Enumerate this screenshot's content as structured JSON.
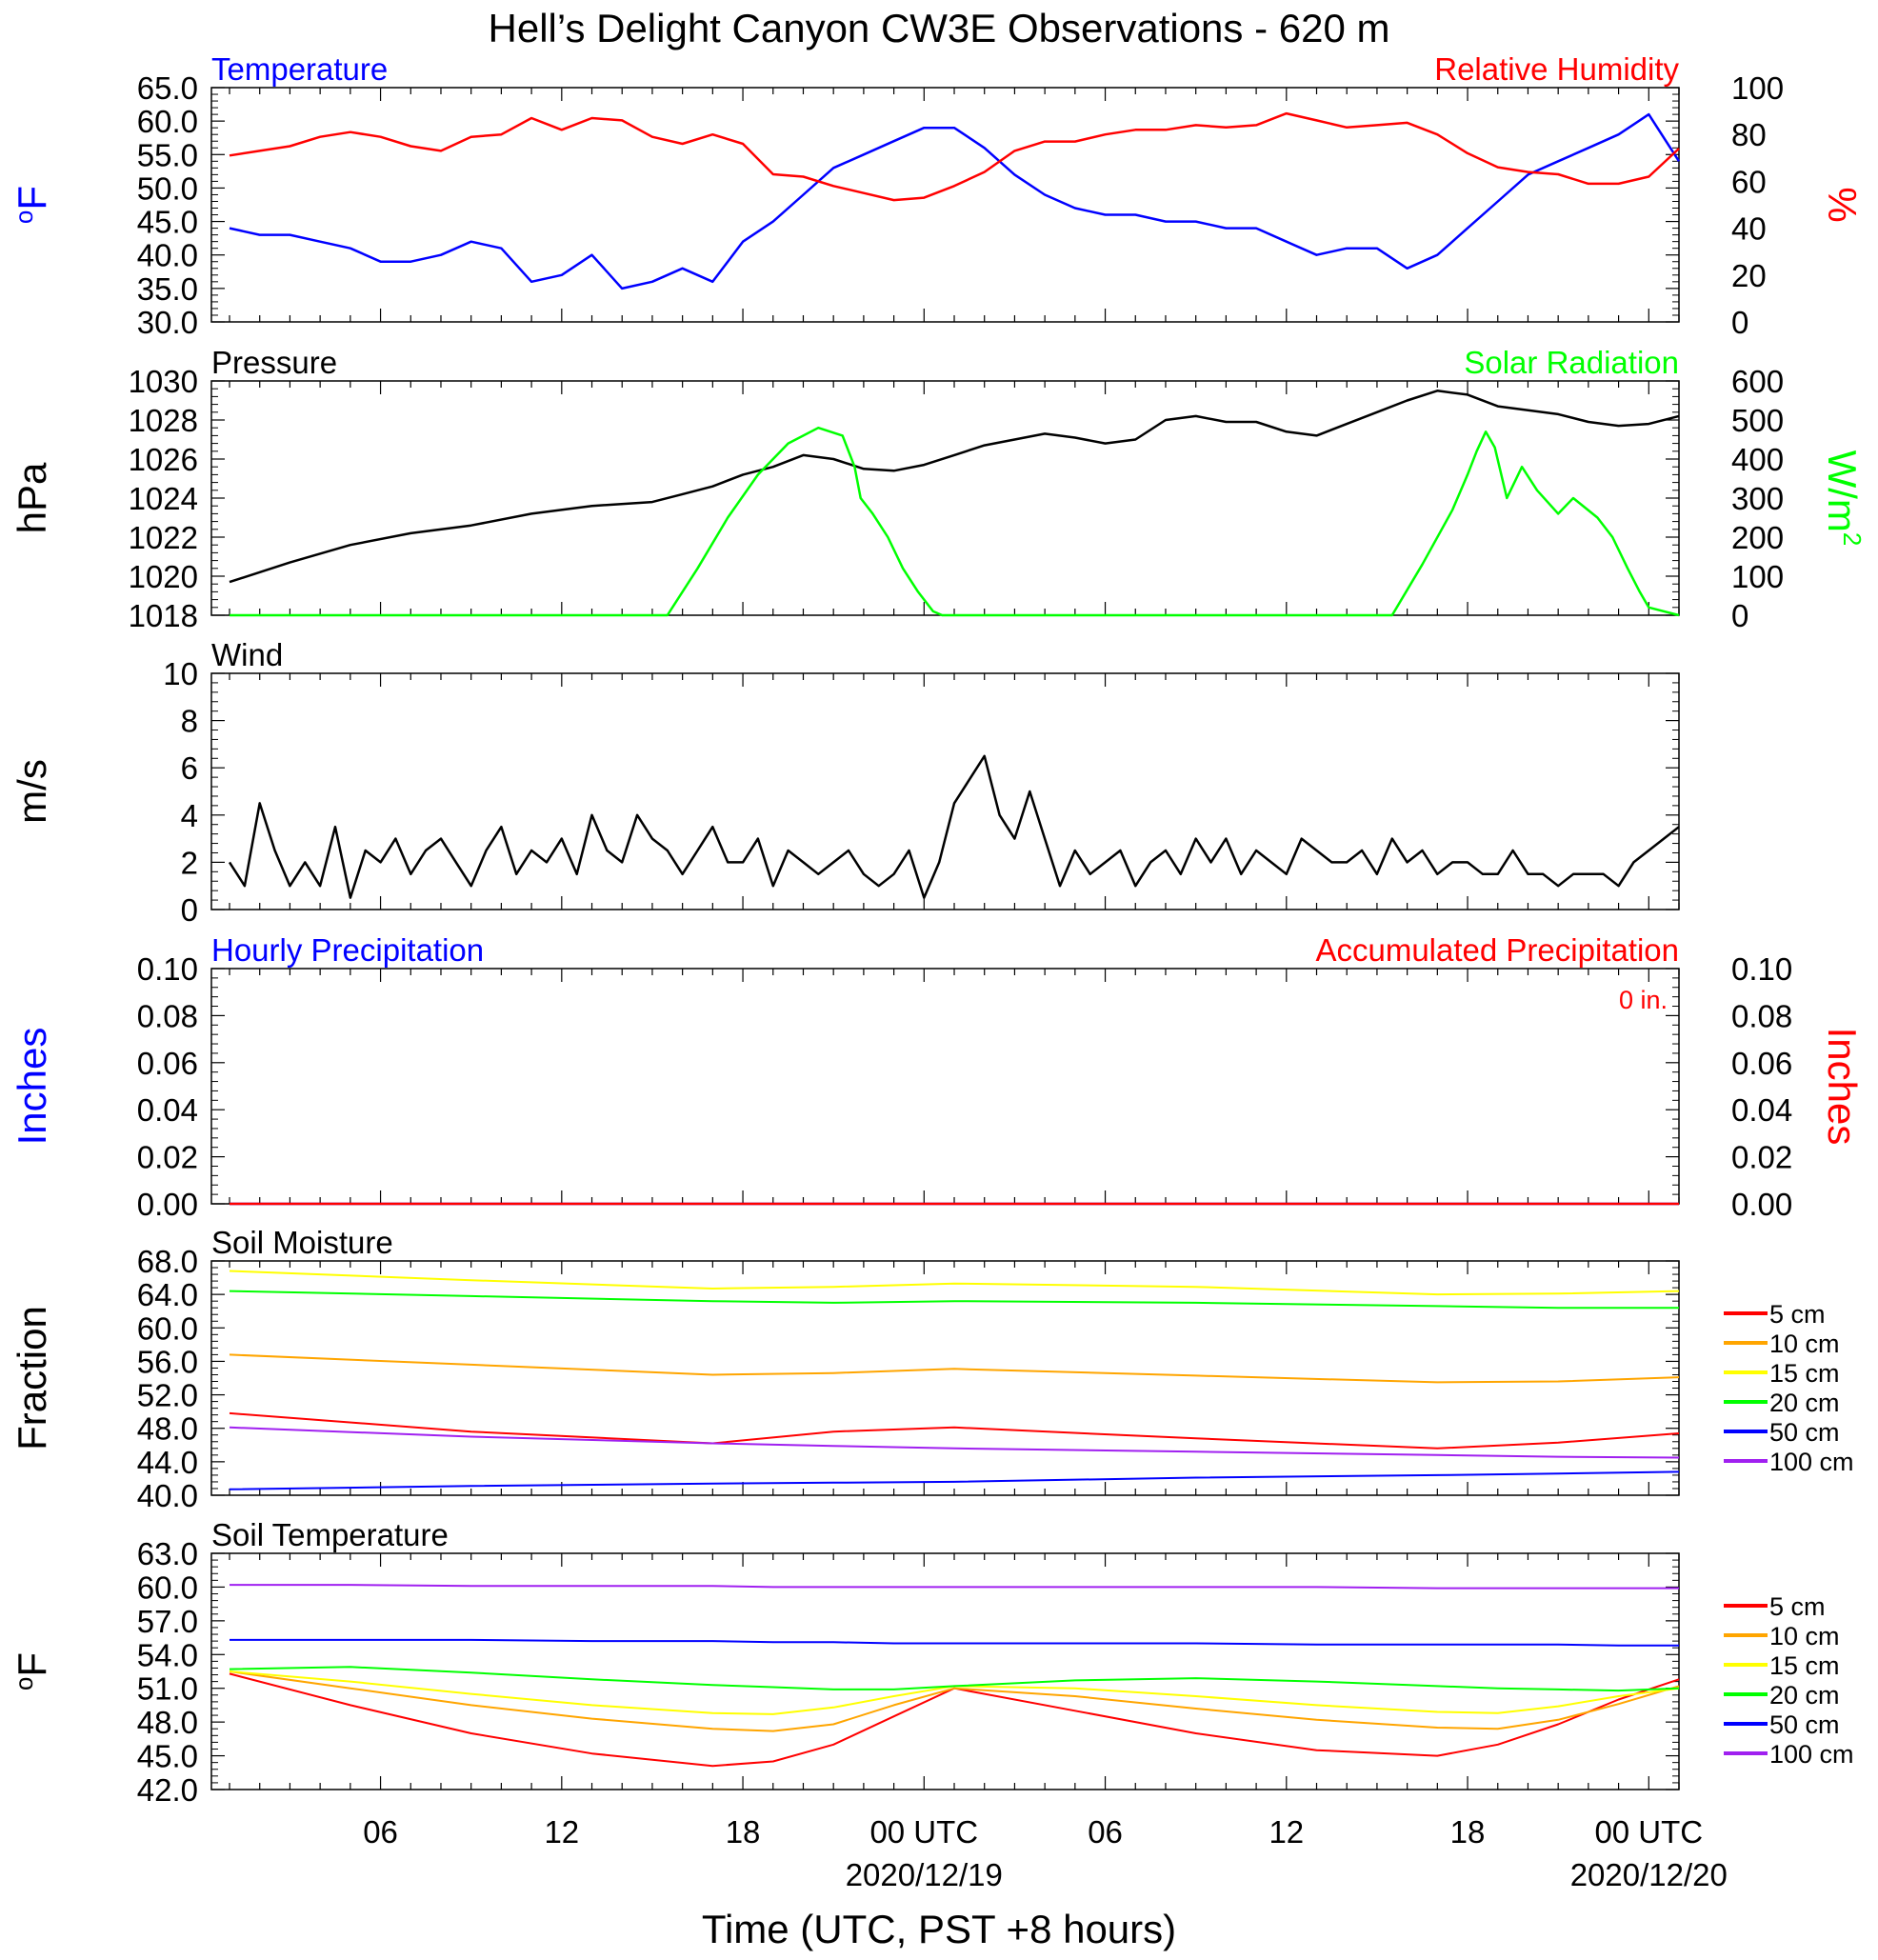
{
  "title": "Hell’s Delight Canyon CW3E Observations - 620 m",
  "xaxis": {
    "title": "Time (UTC, PST +8 hours)",
    "ticks": [
      {
        "hour": 5,
        "label": "06"
      },
      {
        "hour": 11,
        "label": "12"
      },
      {
        "hour": 17,
        "label": "18"
      },
      {
        "hour": 23,
        "label": "00 UTC",
        "date": "2020/12/19"
      },
      {
        "hour": 29,
        "label": "06"
      },
      {
        "hour": 35,
        "label": "12"
      },
      {
        "hour": 41,
        "label": "18"
      },
      {
        "hour": 47,
        "label": "00 UTC",
        "date": "2020/12/20"
      }
    ]
  },
  "colors": {
    "blue": "#0000ff",
    "red": "#ff0000",
    "green": "#00ff00",
    "black": "#000000",
    "orange": "#ffa500",
    "yellow": "#ffff00",
    "purple": "#a020f0"
  },
  "chart_data": [
    {
      "type": "line",
      "panel": "temperature-humidity",
      "left_title": "Temperature",
      "right_title": "Relative Humidity",
      "ylabel_left": "oF",
      "ylabel_right": "%",
      "ylim_left": [
        30,
        65
      ],
      "yticks_left": [
        "30.0",
        "35.0",
        "40.0",
        "45.0",
        "50.0",
        "55.0",
        "60.0",
        "65.0"
      ],
      "ylim_right": [
        0,
        100
      ],
      "yticks_right": [
        "0",
        "20",
        "40",
        "60",
        "80",
        "100"
      ],
      "x_hours": [
        0,
        1,
        2,
        3,
        4,
        5,
        6,
        7,
        8,
        9,
        10,
        11,
        12,
        13,
        14,
        15,
        16,
        17,
        18,
        19,
        20,
        21,
        22,
        23,
        24,
        25,
        26,
        27,
        28,
        29,
        30,
        31,
        32,
        33,
        34,
        35,
        36,
        37,
        38,
        39,
        40,
        41,
        42,
        43,
        44,
        45,
        46,
        47,
        48
      ],
      "series": [
        {
          "name": "Temperature",
          "axis": "left",
          "color": "#0000ff",
          "values": [
            44,
            43,
            43,
            42,
            41,
            39,
            39,
            40,
            42,
            41,
            36,
            37,
            40,
            35,
            36,
            38,
            36,
            42,
            45,
            49,
            53,
            55,
            57,
            59,
            59,
            56,
            52,
            49,
            47,
            46,
            46,
            45,
            45,
            44,
            44,
            42,
            40,
            41,
            41,
            38,
            40,
            44,
            48,
            52,
            54,
            56,
            58,
            61,
            54
          ]
        },
        {
          "name": "Relative Humidity",
          "axis": "right",
          "color": "#ff0000",
          "values": [
            71,
            73,
            75,
            79,
            81,
            79,
            75,
            73,
            79,
            80,
            87,
            82,
            87,
            86,
            79,
            76,
            80,
            76,
            63,
            62,
            58,
            55,
            52,
            53,
            58,
            64,
            73,
            77,
            77,
            80,
            82,
            82,
            84,
            83,
            84,
            89,
            86,
            83,
            84,
            85,
            80,
            72,
            66,
            64,
            63,
            59,
            59,
            62,
            74
          ]
        }
      ]
    },
    {
      "type": "line",
      "panel": "pressure-solar",
      "left_title": "Pressure",
      "right_title": "Solar Radiation",
      "ylabel_left": "hPa",
      "ylabel_right": "W/m2",
      "ylim_left": [
        1018,
        1030
      ],
      "yticks_left": [
        "1018",
        "1020",
        "1022",
        "1024",
        "1026",
        "1028",
        "1030"
      ],
      "ylim_right": [
        0,
        600
      ],
      "yticks_right": [
        "0",
        "100",
        "200",
        "300",
        "400",
        "500",
        "600"
      ],
      "series": [
        {
          "name": "Pressure",
          "axis": "left",
          "color": "#000000",
          "x": [
            0,
            2,
            4,
            6,
            8,
            10,
            12,
            14,
            15,
            16,
            17,
            18,
            19,
            20,
            21,
            22,
            23,
            24,
            25,
            26,
            27,
            28,
            29,
            30,
            31,
            32,
            33,
            34,
            35,
            36,
            37,
            38,
            39,
            40,
            41,
            42,
            43,
            44,
            45,
            46,
            47,
            48
          ],
          "values": [
            1019.7,
            1020.7,
            1021.6,
            1022.2,
            1022.6,
            1023.2,
            1023.6,
            1023.8,
            1024.2,
            1024.6,
            1025.2,
            1025.6,
            1026.2,
            1026.0,
            1025.5,
            1025.4,
            1025.7,
            1026.2,
            1026.7,
            1027.0,
            1027.3,
            1027.1,
            1026.8,
            1027.0,
            1028.0,
            1028.2,
            1027.9,
            1027.9,
            1027.4,
            1027.2,
            1027.8,
            1028.4,
            1029.0,
            1029.5,
            1029.3,
            1028.7,
            1028.5,
            1028.3,
            1027.9,
            1027.7,
            1027.8,
            1028.2
          ]
        },
        {
          "name": "Solar Radiation",
          "axis": "right",
          "color": "#00ff00",
          "x": [
            0,
            14.5,
            15.5,
            16.5,
            17.5,
            18.5,
            19.5,
            20.3,
            20.7,
            20.9,
            21.3,
            21.8,
            22.3,
            22.8,
            23.3,
            23.6,
            24,
            38.5,
            39.5,
            40.5,
            41,
            41.3,
            41.6,
            41.9,
            42.3,
            42.8,
            43.3,
            44,
            44.5,
            45.3,
            45.8,
            46.3,
            46.7,
            47,
            48
          ],
          "values": [
            0,
            0,
            120,
            250,
            360,
            440,
            480,
            460,
            380,
            300,
            260,
            200,
            120,
            60,
            10,
            0,
            0,
            0,
            130,
            270,
            360,
            420,
            470,
            430,
            300,
            380,
            320,
            260,
            300,
            250,
            200,
            120,
            60,
            20,
            0
          ]
        }
      ]
    },
    {
      "type": "line",
      "panel": "wind",
      "left_title": "Wind",
      "ylabel_left": "m/s",
      "ylim_left": [
        0,
        10
      ],
      "yticks_left": [
        "0",
        "2",
        "4",
        "6",
        "8",
        "10"
      ],
      "series": [
        {
          "name": "Wind",
          "color": "#000000",
          "x": [
            0,
            0.5,
            1,
            1.5,
            2,
            2.5,
            3,
            3.5,
            4,
            4.5,
            5,
            5.5,
            6,
            6.5,
            7,
            7.5,
            8,
            8.5,
            9,
            9.5,
            10,
            10.5,
            11,
            11.5,
            12,
            12.5,
            13,
            13.5,
            14,
            14.5,
            15,
            15.5,
            16,
            16.5,
            17,
            17.5,
            18,
            18.5,
            19,
            19.5,
            20,
            20.5,
            21,
            21.5,
            22,
            22.5,
            23,
            23.5,
            24,
            24.5,
            25,
            25.5,
            26,
            26.5,
            27,
            27.5,
            28,
            28.5,
            29,
            29.5,
            30,
            30.5,
            31,
            31.5,
            32,
            32.5,
            33,
            33.5,
            34,
            34.5,
            35,
            35.5,
            36,
            36.5,
            37,
            37.5,
            38,
            38.5,
            39,
            39.5,
            40,
            40.5,
            41,
            41.5,
            42,
            42.5,
            43,
            43.5,
            44,
            44.5,
            45,
            45.5,
            46,
            46.5,
            47,
            47.5,
            48
          ],
          "values": [
            2.0,
            1.0,
            4.5,
            2.5,
            1.0,
            2.0,
            1.0,
            3.5,
            0.5,
            2.5,
            2.0,
            3.0,
            1.5,
            2.5,
            3.0,
            2.0,
            1.0,
            2.5,
            3.5,
            1.5,
            2.5,
            2.0,
            3.0,
            1.5,
            4.0,
            2.5,
            2.0,
            4.0,
            3.0,
            2.5,
            1.5,
            2.5,
            3.5,
            2.0,
            2.0,
            3.0,
            1.0,
            2.5,
            2.0,
            1.5,
            2.0,
            2.5,
            1.5,
            1.0,
            1.5,
            2.5,
            0.5,
            2.0,
            4.5,
            5.5,
            6.5,
            4.0,
            3.0,
            5.0,
            3.0,
            1.0,
            2.5,
            1.5,
            2.0,
            2.5,
            1.0,
            2.0,
            2.5,
            1.5,
            3.0,
            2.0,
            3.0,
            1.5,
            2.5,
            2.0,
            1.5,
            3.0,
            2.5,
            2.0,
            2.0,
            2.5,
            1.5,
            3.0,
            2.0,
            2.5,
            1.5,
            2.0,
            2.0,
            1.5,
            1.5,
            2.5,
            1.5,
            1.5,
            1.0,
            1.5,
            1.5,
            1.5,
            1.0,
            2.0,
            2.5,
            3.0,
            3.5
          ]
        }
      ]
    },
    {
      "type": "line",
      "panel": "precipitation",
      "left_title": "Hourly Precipitation",
      "right_title": "Accumulated Precipitation",
      "annotation": "0 in.",
      "ylabel_left": "Inches",
      "ylabel_right": "Inches",
      "ylim_left": [
        0,
        0.1
      ],
      "yticks_left": [
        "0.00",
        "0.02",
        "0.04",
        "0.06",
        "0.08",
        "0.10"
      ],
      "ylim_right": [
        0,
        0.1
      ],
      "yticks_right": [
        "0.00",
        "0.02",
        "0.04",
        "0.06",
        "0.08",
        "0.10"
      ],
      "series": [
        {
          "name": "Hourly Precipitation",
          "color": "#0000ff",
          "x": [
            0,
            48
          ],
          "values": [
            0,
            0
          ]
        },
        {
          "name": "Accumulated Precipitation",
          "color": "#ff0000",
          "x": [
            0,
            48
          ],
          "values": [
            0,
            0
          ]
        }
      ]
    },
    {
      "type": "line",
      "panel": "soil-moisture",
      "left_title": "Soil Moisture",
      "ylabel_left": "Fraction",
      "ylim_left": [
        40,
        68
      ],
      "yticks_left": [
        "40.0",
        "44.0",
        "48.0",
        "52.0",
        "56.0",
        "60.0",
        "64.0",
        "68.0"
      ],
      "x_hours": [
        0,
        8,
        16,
        20,
        24,
        32,
        40,
        44,
        48
      ],
      "series": [
        {
          "name": "5 cm",
          "color": "#ff0000",
          "values": [
            49.8,
            47.6,
            46.2,
            47.6,
            48.1,
            46.8,
            45.6,
            46.3,
            47.4
          ]
        },
        {
          "name": "10 cm",
          "color": "#ffa500",
          "values": [
            56.8,
            55.6,
            54.4,
            54.6,
            55.1,
            54.3,
            53.5,
            53.6,
            54.1
          ]
        },
        {
          "name": "15 cm",
          "color": "#ffff00",
          "values": [
            66.8,
            65.7,
            64.7,
            64.9,
            65.3,
            64.9,
            64.0,
            64.1,
            64.4
          ]
        },
        {
          "name": "20 cm",
          "color": "#00ff00",
          "values": [
            64.4,
            63.8,
            63.2,
            63.0,
            63.2,
            63.0,
            62.6,
            62.4,
            62.4
          ]
        },
        {
          "name": "50 cm",
          "color": "#0000ff",
          "values": [
            40.7,
            41.1,
            41.4,
            41.5,
            41.6,
            42.1,
            42.4,
            42.6,
            42.8
          ]
        },
        {
          "name": "100 cm",
          "color": "#a020f0",
          "values": [
            48.1,
            47.0,
            46.2,
            45.9,
            45.6,
            45.2,
            44.8,
            44.6,
            44.5
          ]
        }
      ]
    },
    {
      "type": "line",
      "panel": "soil-temperature",
      "left_title": "Soil Temperature",
      "ylabel_left": "oF",
      "ylim_left": [
        42,
        63
      ],
      "yticks_left": [
        "42.0",
        "45.0",
        "48.0",
        "51.0",
        "54.0",
        "57.0",
        "60.0",
        "63.0"
      ],
      "x_hours": [
        0,
        4,
        8,
        12,
        16,
        18,
        20,
        22,
        24,
        28,
        32,
        36,
        40,
        42,
        44,
        46,
        48
      ],
      "series": [
        {
          "name": "5 cm",
          "color": "#ff0000",
          "values": [
            52.3,
            49.5,
            47.0,
            45.2,
            44.1,
            44.5,
            46.0,
            48.5,
            51.0,
            49.0,
            47.0,
            45.5,
            45.0,
            46.0,
            47.8,
            50.0,
            51.8
          ]
        },
        {
          "name": "10 cm",
          "color": "#ffa500",
          "values": [
            52.5,
            51.0,
            49.5,
            48.3,
            47.4,
            47.2,
            47.8,
            49.5,
            51.0,
            50.3,
            49.2,
            48.2,
            47.5,
            47.4,
            48.2,
            49.6,
            51.2
          ]
        },
        {
          "name": "15 cm",
          "color": "#ffff00",
          "values": [
            52.5,
            51.6,
            50.5,
            49.5,
            48.8,
            48.7,
            49.3,
            50.3,
            51.2,
            51.0,
            50.3,
            49.5,
            48.9,
            48.8,
            49.4,
            50.3,
            51.0
          ]
        },
        {
          "name": "20 cm",
          "color": "#00ff00",
          "values": [
            52.7,
            52.9,
            52.4,
            51.8,
            51.3,
            51.1,
            50.9,
            50.9,
            51.2,
            51.7,
            51.9,
            51.6,
            51.2,
            51.0,
            50.9,
            50.8,
            51.0
          ]
        },
        {
          "name": "50 cm",
          "color": "#0000ff",
          "values": [
            55.3,
            55.3,
            55.3,
            55.2,
            55.2,
            55.1,
            55.1,
            55.0,
            55.0,
            55.0,
            55.0,
            54.9,
            54.9,
            54.9,
            54.9,
            54.8,
            54.8
          ]
        },
        {
          "name": "100 cm",
          "color": "#a020f0",
          "values": [
            60.2,
            60.2,
            60.1,
            60.1,
            60.1,
            60.0,
            60.0,
            60.0,
            60.0,
            60.0,
            60.0,
            60.0,
            59.9,
            59.9,
            59.9,
            59.9,
            59.9
          ]
        }
      ]
    }
  ]
}
